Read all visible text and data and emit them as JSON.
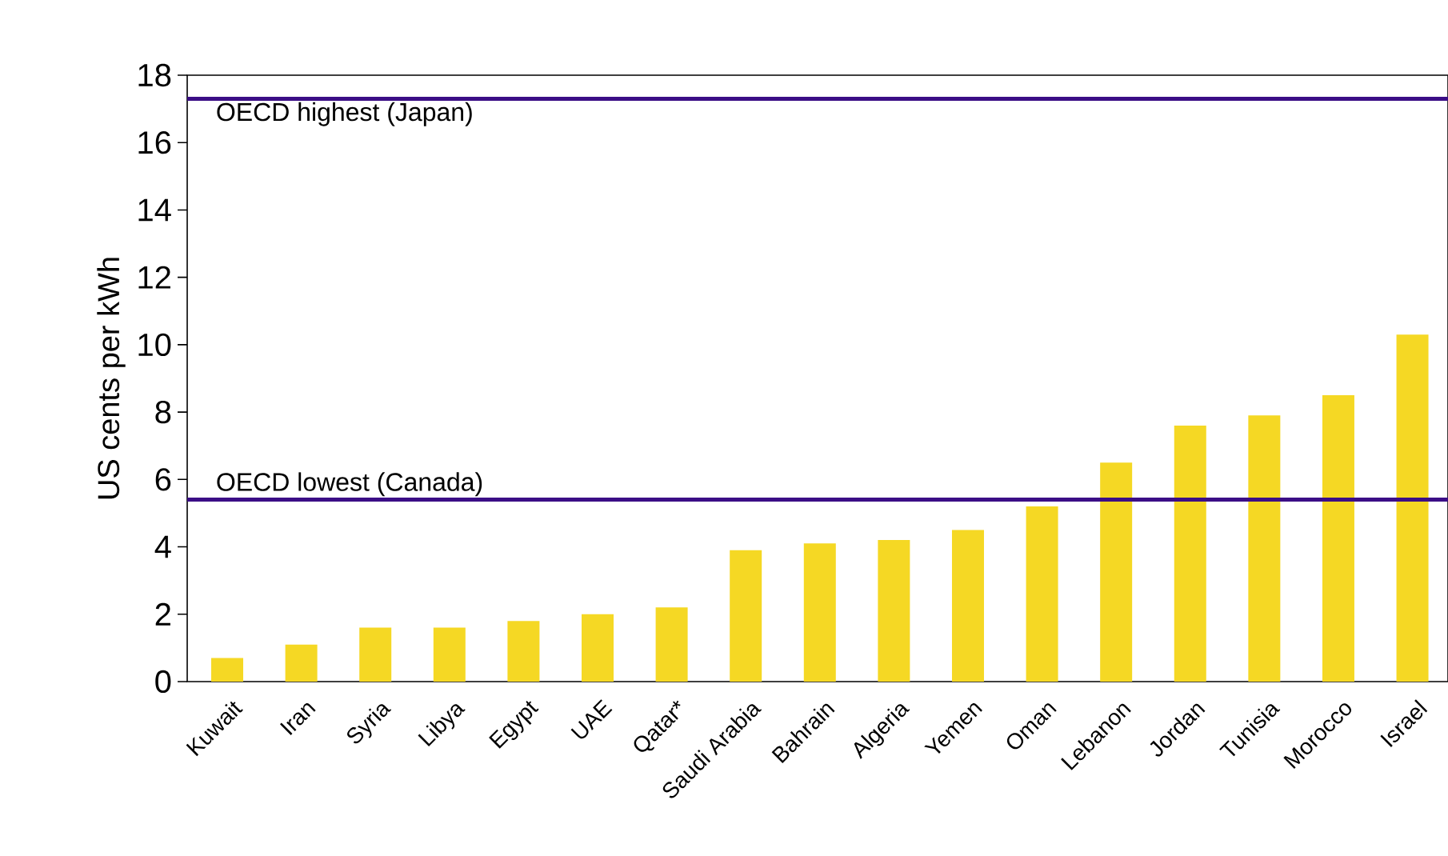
{
  "chart_data": {
    "type": "bar",
    "ylabel": "US cents per kWh",
    "categories": [
      "Kuwait",
      "Iran",
      "Syria",
      "Libya",
      "Egypt",
      "UAE",
      "Qatar*",
      "Saudi Arabia",
      "Bahrain",
      "Algeria",
      "Yemen",
      "Oman",
      "Lebanon",
      "Jordan",
      "Tunisia",
      "Morocco",
      "Israel"
    ],
    "values": [
      0.7,
      1.1,
      1.6,
      1.6,
      1.8,
      2.0,
      2.2,
      3.9,
      4.1,
      4.2,
      4.5,
      5.2,
      6.5,
      7.6,
      7.9,
      8.5,
      10.3
    ],
    "color": "#f5d824",
    "ylim": [
      0,
      18
    ],
    "yticks": [
      0,
      2,
      4,
      6,
      8,
      10,
      12,
      14,
      16,
      18
    ],
    "ref_lines": [
      {
        "axis": "y",
        "value": 17.3,
        "label": "OECD highest (Japan)",
        "color": "#3b0e86"
      },
      {
        "axis": "y",
        "value": 5.4,
        "label": "OECD lowest (Canada)",
        "color": "#3b0e86"
      }
    ],
    "grid": false
  }
}
